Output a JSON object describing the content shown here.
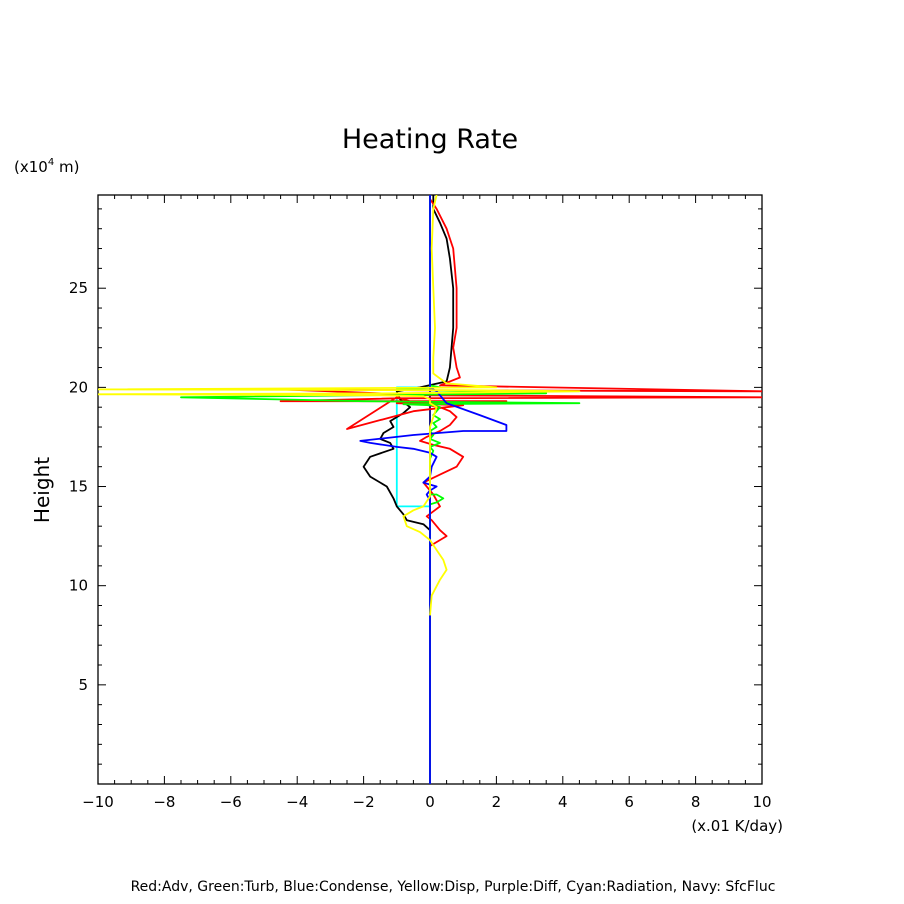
{
  "chart_data": {
    "type": "line",
    "title": "Heating Rate",
    "xlabel": "(x.01 K/day)",
    "ylabel": "Height",
    "y_units_label": "(x10",
    "y_units_exp": "4",
    "y_units_tail": " m)",
    "xlim": [
      -10,
      10
    ],
    "ylim": [
      0,
      29.7
    ],
    "xticks": [
      -10,
      -8,
      -6,
      -4,
      -2,
      0,
      2,
      4,
      6,
      8,
      10
    ],
    "yticks": [
      5,
      10,
      15,
      20,
      25
    ],
    "grid": false,
    "legend": "Red:Adv, Green:Turb, Blue:Condense, Yellow:Disp, Purple:Diff, Cyan:Radiation, Navy: SfcFluc",
    "series": [
      {
        "name": "Adv",
        "color": "#ff0000",
        "x": [
          0,
          0,
          0,
          0,
          0,
          0.0,
          0.5,
          0.3,
          0.05,
          -0.1,
          0.3,
          0.1,
          -0.2,
          0.3,
          0.8,
          1.0,
          0.6,
          0.1,
          -0.3,
          -0.1,
          0.3,
          0.6,
          0.8,
          0.6,
          0.3,
          -0.4,
          -1.0,
          -2.5,
          -0.5,
          1.0,
          -1.0,
          2.3,
          -4.5,
          -1.0,
          10,
          0,
          -4.5,
          0,
          10,
          0.3,
          0.9,
          0.8,
          0.7,
          0.8,
          0.8,
          0.7,
          0.5,
          0.2,
          0,
          0
        ],
        "y": [
          0,
          5,
          9,
          10,
          11,
          12,
          12.5,
          12.8,
          13.3,
          13.5,
          14.0,
          14.6,
          15.2,
          15.6,
          16.0,
          16.5,
          16.9,
          17.1,
          17.3,
          17.5,
          17.8,
          18.1,
          18.5,
          18.8,
          19.0,
          19.2,
          19.5,
          17.9,
          18.8,
          19.1,
          19.2,
          19.3,
          19.3,
          19.45,
          19.5,
          19.6,
          19.9,
          19.85,
          19.8,
          20.1,
          20.5,
          21.0,
          22.0,
          23.0,
          25.0,
          27.0,
          28.0,
          29.0,
          29.5,
          29.7
        ]
      },
      {
        "name": "Turb",
        "color": "#00ff00",
        "x": [
          0,
          0,
          0,
          0,
          0.2,
          0.4,
          0.2,
          0,
          0,
          0,
          0.1,
          0.0,
          0.3,
          0.0,
          0.1,
          0.0,
          0.2,
          0.1,
          0.3,
          0.1,
          0.2,
          0.3,
          0.1,
          0.0,
          -0.8,
          4.5,
          -2.0,
          -7.5,
          3.5,
          -1.0,
          0.3,
          0,
          0
        ],
        "y": [
          0,
          10,
          14.0,
          14.1,
          14.2,
          14.4,
          14.6,
          14.6,
          16.0,
          16.4,
          16.8,
          17.0,
          17.2,
          17.4,
          17.6,
          17.8,
          18.0,
          18.2,
          18.4,
          18.6,
          18.8,
          19.0,
          19.1,
          19.1,
          19.15,
          19.2,
          19.3,
          19.5,
          19.7,
          19.9,
          20.0,
          20.1,
          29.7
        ]
      },
      {
        "name": "Condense",
        "color": "#0000ff",
        "x": [
          0,
          0,
          0,
          0,
          -0.1,
          0,
          0.2,
          -0.2,
          0,
          0.05,
          0.2,
          0.0,
          -0.5,
          -1.0,
          -1.8,
          -2.1,
          -0.5,
          1.0,
          2.3,
          2.3,
          1.5,
          0.5,
          0.2,
          0,
          0
        ],
        "y": [
          0,
          10,
          12,
          14.3,
          14.6,
          14.8,
          15.0,
          15.2,
          15.5,
          16.0,
          16.5,
          16.7,
          16.9,
          17.0,
          17.2,
          17.3,
          17.6,
          17.8,
          17.8,
          18.1,
          18.6,
          19.2,
          19.8,
          20.0,
          29.7
        ]
      },
      {
        "name": "Disp",
        "color": "#ffff00",
        "x": [
          0.0,
          0.05,
          0.3,
          0.5,
          0.4,
          0.2,
          0.0,
          -0.3,
          -0.7,
          -0.8,
          -0.5,
          -0.2,
          0,
          0,
          0.1,
          0.2,
          0,
          0,
          -0.2,
          -1.5,
          -10,
          -1.0,
          4.5,
          1.5,
          -10,
          2.0,
          0.5,
          0.1,
          0.1,
          0.15,
          0.1,
          0.05,
          0.1,
          0.2
        ],
        "y": [
          8.5,
          9.5,
          10.3,
          10.8,
          11.3,
          11.8,
          12.3,
          12.7,
          13.0,
          13.5,
          13.8,
          14.0,
          14.5,
          18.0,
          18.5,
          19.0,
          19.2,
          19.4,
          19.55,
          19.6,
          19.65,
          19.7,
          19.8,
          19.85,
          19.9,
          20.0,
          20.2,
          20.7,
          21.5,
          23.0,
          25.0,
          27.0,
          29.0,
          29.7
        ]
      },
      {
        "name": "Diff",
        "color": "#ff00ff",
        "x": [],
        "y": []
      },
      {
        "name": "Radiation",
        "color": "#00ffff",
        "x": [
          0,
          0,
          -1.0,
          -1.0,
          0,
          0
        ],
        "y": [
          0,
          14.0,
          14.0,
          20.0,
          20.0,
          29.7
        ]
      },
      {
        "name": "SfcFluc",
        "color": "#000080",
        "x": [
          0,
          0
        ],
        "y": [
          0,
          29.7
        ]
      },
      {
        "name": "",
        "color": "#000000",
        "x": [
          0,
          0,
          0,
          0,
          0,
          -0.2,
          -0.7,
          -0.8,
          -1.0,
          -1.1,
          -1.3,
          -1.8,
          -2.0,
          -1.8,
          -1.1,
          -1.2,
          -1.5,
          -1.4,
          -1.1,
          -1.2,
          -0.8,
          -0.6,
          -0.9,
          -1.0,
          -0.3,
          0.5,
          0.6,
          0.7,
          0.7,
          0.6,
          0.5,
          0.3,
          0.1,
          0.1
        ],
        "y": [
          0,
          9.4,
          10,
          12,
          12.8,
          13.1,
          13.3,
          13.6,
          14.0,
          14.4,
          15.0,
          15.5,
          16.0,
          16.5,
          16.9,
          17.2,
          17.4,
          17.7,
          18.0,
          18.3,
          18.7,
          19.0,
          19.4,
          19.8,
          20.0,
          20.3,
          21.0,
          23.0,
          25.0,
          26.5,
          27.5,
          28.3,
          29.0,
          29.7
        ]
      }
    ]
  }
}
